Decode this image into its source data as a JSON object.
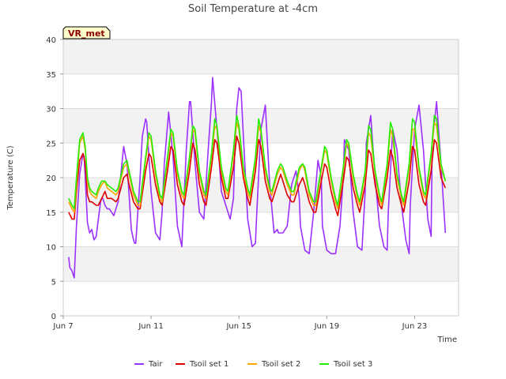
{
  "chart_data": {
    "type": "line",
    "title": "Soil Temperature at -4cm",
    "xlabel": "Time",
    "ylabel": "Temperature (C)",
    "station_label": "VR_met",
    "x_unit": "days since Jun 7",
    "xlim": [
      0,
      18
    ],
    "ylim": [
      0,
      40
    ],
    "y_ticks": [
      0,
      5,
      10,
      15,
      20,
      25,
      30,
      35,
      40
    ],
    "x_ticks": [
      {
        "value": 0,
        "label": "Jun 7"
      },
      {
        "value": 4,
        "label": "Jun 11"
      },
      {
        "value": 8,
        "label": "Jun 15"
      },
      {
        "value": 12,
        "label": "Jun 19"
      },
      {
        "value": 16,
        "label": "Jun 23"
      }
    ],
    "grid": true,
    "legend_position": "bottom",
    "series": [
      {
        "name": "Tair",
        "color": "#9b30ff",
        "x": [
          0.25,
          0.3,
          0.4,
          0.5,
          0.6,
          0.75,
          0.9,
          0.95,
          1.0,
          1.1,
          1.2,
          1.3,
          1.4,
          1.5,
          1.6,
          1.7,
          1.75,
          1.8,
          1.9,
          2.0,
          2.1,
          2.2,
          2.3,
          2.5,
          2.75,
          2.9,
          3.0,
          3.1,
          3.2,
          3.25,
          3.3,
          3.5,
          3.6,
          3.75,
          3.8,
          4.0,
          4.2,
          4.4,
          4.5,
          4.6,
          4.8,
          5.0,
          5.2,
          5.4,
          5.6,
          5.75,
          5.8,
          6.0,
          6.2,
          6.4,
          6.6,
          6.75,
          6.8,
          7.0,
          7.2,
          7.4,
          7.6,
          7.75,
          7.8,
          7.9,
          8.0,
          8.1,
          8.2,
          8.4,
          8.6,
          8.75,
          8.8,
          9.0,
          9.2,
          9.4,
          9.6,
          9.75,
          9.8,
          10.0,
          10.2,
          10.4,
          10.6,
          10.75,
          10.8,
          11.0,
          11.2,
          11.4,
          11.6,
          11.75,
          11.8,
          12.0,
          12.2,
          12.4,
          12.6,
          12.75,
          12.8,
          13.0,
          13.2,
          13.4,
          13.6,
          13.75,
          13.8,
          14.0,
          14.2,
          14.4,
          14.6,
          14.75,
          14.8,
          15.0,
          15.2,
          15.4,
          15.6,
          15.75,
          15.8,
          16.0,
          16.2,
          16.4,
          16.6,
          16.75,
          16.8,
          17.0,
          17.2,
          17.4
        ],
        "values": [
          8.5,
          7.0,
          6.5,
          5.5,
          13.0,
          20.5,
          23.5,
          23.0,
          20.0,
          13.5,
          12.0,
          12.5,
          11.0,
          11.5,
          14.0,
          16.5,
          17.0,
          17.0,
          16.0,
          15.5,
          15.5,
          15.0,
          14.5,
          16.5,
          24.5,
          22.0,
          17.5,
          12.5,
          11.0,
          10.5,
          10.5,
          20.0,
          26.0,
          28.5,
          28.0,
          18.0,
          12.0,
          11.0,
          15.0,
          22.0,
          29.5,
          23.0,
          13.0,
          10.0,
          24.0,
          31.0,
          31.0,
          22.0,
          15.0,
          14.0,
          24.0,
          31.0,
          34.5,
          27.0,
          18.0,
          16.0,
          14.0,
          17.0,
          23.0,
          30.0,
          33.0,
          32.5,
          26.0,
          14.0,
          10.0,
          10.5,
          14.0,
          27.0,
          30.5,
          19.0,
          12.0,
          12.5,
          12.0,
          12.0,
          13.0,
          19.0,
          21.0,
          17.0,
          13.0,
          9.5,
          9.0,
          15.0,
          22.5,
          20.0,
          13.0,
          9.5,
          9.0,
          9.0,
          13.0,
          20.0,
          25.5,
          24.0,
          15.0,
          10.0,
          9.5,
          18.0,
          25.0,
          29.0,
          20.0,
          13.0,
          10.0,
          9.5,
          15.0,
          27.0,
          24.0,
          16.0,
          11.0,
          9.0,
          16.0,
          27.0,
          30.5,
          24.0,
          14.0,
          11.5,
          25.0,
          31.0,
          22.0,
          12.0
        ]
      },
      {
        "name": "Tsoil set 1",
        "color": "#dd0000",
        "x": [
          0.25,
          0.4,
          0.5,
          0.6,
          0.75,
          0.9,
          1.0,
          1.1,
          1.2,
          1.3,
          1.5,
          1.6,
          1.75,
          1.9,
          2.0,
          2.2,
          2.4,
          2.5,
          2.75,
          2.9,
          3.0,
          3.2,
          3.4,
          3.5,
          3.75,
          3.9,
          4.0,
          4.2,
          4.4,
          4.5,
          4.75,
          4.9,
          5.0,
          5.2,
          5.4,
          5.5,
          5.75,
          5.9,
          6.0,
          6.2,
          6.4,
          6.5,
          6.75,
          6.9,
          7.0,
          7.2,
          7.4,
          7.5,
          7.75,
          7.9,
          8.0,
          8.2,
          8.4,
          8.5,
          8.75,
          8.9,
          9.0,
          9.2,
          9.4,
          9.5,
          9.75,
          9.9,
          10.0,
          10.2,
          10.4,
          10.5,
          10.75,
          10.9,
          11.0,
          11.2,
          11.4,
          11.5,
          11.75,
          11.9,
          12.0,
          12.2,
          12.4,
          12.5,
          12.75,
          12.9,
          13.0,
          13.2,
          13.4,
          13.5,
          13.75,
          13.9,
          14.0,
          14.2,
          14.4,
          14.5,
          14.75,
          14.9,
          15.0,
          15.2,
          15.4,
          15.5,
          15.75,
          15.9,
          16.0,
          16.2,
          16.4,
          16.5,
          16.75,
          16.9,
          17.0,
          17.2,
          17.4
        ],
        "values": [
          15.0,
          14.0,
          14.0,
          18.0,
          22.5,
          23.5,
          22.0,
          17.5,
          16.5,
          16.5,
          16.0,
          16.0,
          17.0,
          18.0,
          17.0,
          17.0,
          16.5,
          17.0,
          20.0,
          20.5,
          19.0,
          16.5,
          15.5,
          15.5,
          21.0,
          23.5,
          23.0,
          19.0,
          16.5,
          16.0,
          21.0,
          24.5,
          24.0,
          19.0,
          16.5,
          16.0,
          21.0,
          25.0,
          24.0,
          19.0,
          16.5,
          16.0,
          21.5,
          25.5,
          25.0,
          20.0,
          17.0,
          17.0,
          21.5,
          26.0,
          25.0,
          20.0,
          17.0,
          16.0,
          21.0,
          25.5,
          24.5,
          19.5,
          17.0,
          16.5,
          19.0,
          20.5,
          19.5,
          17.5,
          16.5,
          16.5,
          19.0,
          20.0,
          19.0,
          16.5,
          15.0,
          15.0,
          19.5,
          22.0,
          21.5,
          18.0,
          15.5,
          14.5,
          19.5,
          23.0,
          22.5,
          18.5,
          16.0,
          15.0,
          19.0,
          24.0,
          23.5,
          19.0,
          16.0,
          15.5,
          20.0,
          24.0,
          23.0,
          18.5,
          16.0,
          15.0,
          19.5,
          24.5,
          24.0,
          19.0,
          16.5,
          16.0,
          21.0,
          25.5,
          25.0,
          20.0,
          18.5
        ]
      },
      {
        "name": "Tsoil set 2",
        "color": "#ffa500",
        "x": [
          0.25,
          0.4,
          0.5,
          0.6,
          0.75,
          0.9,
          1.0,
          1.1,
          1.2,
          1.3,
          1.5,
          1.6,
          1.75,
          1.9,
          2.0,
          2.2,
          2.4,
          2.5,
          2.75,
          2.9,
          3.0,
          3.2,
          3.4,
          3.5,
          3.75,
          3.9,
          4.0,
          4.2,
          4.4,
          4.5,
          4.75,
          4.9,
          5.0,
          5.2,
          5.4,
          5.5,
          5.75,
          5.9,
          6.0,
          6.2,
          6.4,
          6.5,
          6.75,
          6.9,
          7.0,
          7.2,
          7.4,
          7.5,
          7.75,
          7.9,
          8.0,
          8.2,
          8.4,
          8.5,
          8.75,
          8.9,
          9.0,
          9.2,
          9.4,
          9.5,
          9.75,
          9.9,
          10.0,
          10.2,
          10.4,
          10.5,
          10.75,
          10.9,
          11.0,
          11.2,
          11.4,
          11.5,
          11.75,
          11.9,
          12.0,
          12.2,
          12.4,
          12.5,
          12.75,
          12.9,
          13.0,
          13.2,
          13.4,
          13.5,
          13.75,
          13.9,
          14.0,
          14.2,
          14.4,
          14.5,
          14.75,
          14.9,
          15.0,
          15.2,
          15.4,
          15.5,
          15.75,
          15.9,
          16.0,
          16.2,
          16.4,
          16.5,
          16.75,
          16.9,
          17.0,
          17.2,
          17.4
        ],
        "values": [
          16.5,
          15.5,
          15.0,
          19.0,
          25.0,
          26.0,
          24.0,
          19.5,
          18.0,
          17.5,
          17.0,
          18.0,
          19.0,
          19.5,
          18.5,
          18.0,
          17.5,
          18.0,
          21.5,
          22.0,
          20.5,
          17.5,
          16.0,
          16.0,
          22.5,
          26.0,
          25.5,
          20.5,
          17.0,
          16.5,
          22.5,
          26.5,
          26.0,
          20.5,
          17.5,
          17.0,
          22.5,
          27.0,
          26.5,
          20.5,
          17.5,
          17.0,
          23.0,
          27.5,
          27.0,
          21.0,
          18.0,
          17.5,
          23.5,
          28.0,
          27.0,
          21.0,
          18.0,
          17.0,
          22.5,
          27.5,
          26.5,
          21.0,
          18.0,
          17.5,
          20.5,
          21.5,
          21.0,
          19.0,
          17.5,
          17.5,
          21.0,
          22.0,
          21.0,
          17.5,
          16.0,
          16.0,
          21.0,
          24.0,
          23.5,
          19.5,
          16.5,
          15.5,
          21.0,
          25.0,
          24.5,
          20.0,
          17.0,
          16.0,
          20.5,
          26.5,
          26.0,
          20.5,
          17.0,
          16.0,
          21.5,
          27.0,
          26.0,
          20.0,
          17.0,
          16.0,
          21.5,
          27.0,
          27.0,
          21.0,
          17.5,
          17.0,
          23.0,
          28.0,
          27.5,
          21.5,
          19.5
        ]
      },
      {
        "name": "Tsoil set 3",
        "color": "#22ee00",
        "x": [
          0.25,
          0.4,
          0.5,
          0.6,
          0.75,
          0.9,
          1.0,
          1.1,
          1.2,
          1.3,
          1.5,
          1.6,
          1.75,
          1.9,
          2.0,
          2.2,
          2.4,
          2.5,
          2.75,
          2.9,
          3.0,
          3.2,
          3.4,
          3.5,
          3.75,
          3.9,
          4.0,
          4.2,
          4.4,
          4.5,
          4.75,
          4.9,
          5.0,
          5.2,
          5.4,
          5.5,
          5.75,
          5.9,
          6.0,
          6.2,
          6.4,
          6.5,
          6.75,
          6.9,
          7.0,
          7.2,
          7.4,
          7.5,
          7.75,
          7.9,
          8.0,
          8.2,
          8.4,
          8.5,
          8.75,
          8.9,
          9.0,
          9.2,
          9.4,
          9.5,
          9.75,
          9.9,
          10.0,
          10.2,
          10.4,
          10.5,
          10.75,
          10.9,
          11.0,
          11.2,
          11.4,
          11.5,
          11.75,
          11.9,
          12.0,
          12.2,
          12.4,
          12.5,
          12.75,
          12.9,
          13.0,
          13.2,
          13.4,
          13.5,
          13.75,
          13.9,
          14.0,
          14.2,
          14.4,
          14.5,
          14.75,
          14.9,
          15.0,
          15.2,
          15.4,
          15.5,
          15.75,
          15.9,
          16.0,
          16.2,
          16.4,
          16.5,
          16.75,
          16.9,
          17.0,
          17.2,
          17.4
        ],
        "values": [
          17.0,
          16.0,
          15.5,
          20.0,
          25.5,
          26.5,
          24.5,
          20.0,
          18.5,
          18.0,
          17.5,
          18.5,
          19.5,
          19.5,
          19.0,
          18.5,
          18.0,
          18.5,
          22.0,
          22.5,
          21.0,
          18.0,
          16.5,
          16.5,
          23.0,
          26.5,
          26.0,
          21.0,
          17.5,
          17.0,
          23.0,
          27.0,
          26.5,
          21.0,
          18.0,
          17.5,
          23.0,
          27.5,
          27.0,
          21.0,
          18.0,
          17.5,
          23.5,
          28.5,
          27.5,
          21.5,
          18.5,
          18.0,
          24.0,
          29.0,
          27.5,
          21.5,
          18.5,
          17.5,
          23.0,
          28.5,
          27.0,
          21.5,
          18.5,
          18.0,
          21.0,
          22.0,
          21.5,
          19.5,
          18.0,
          18.0,
          21.5,
          22.0,
          21.5,
          18.0,
          16.5,
          16.5,
          21.5,
          24.5,
          24.0,
          20.0,
          17.0,
          16.0,
          21.5,
          25.5,
          25.0,
          20.5,
          17.5,
          16.5,
          21.0,
          27.5,
          27.0,
          21.0,
          17.5,
          16.5,
          22.0,
          28.0,
          27.0,
          20.5,
          17.5,
          16.5,
          22.0,
          28.5,
          28.0,
          21.5,
          18.0,
          17.5,
          23.5,
          29.0,
          28.5,
          22.0,
          19.5
        ]
      }
    ]
  }
}
